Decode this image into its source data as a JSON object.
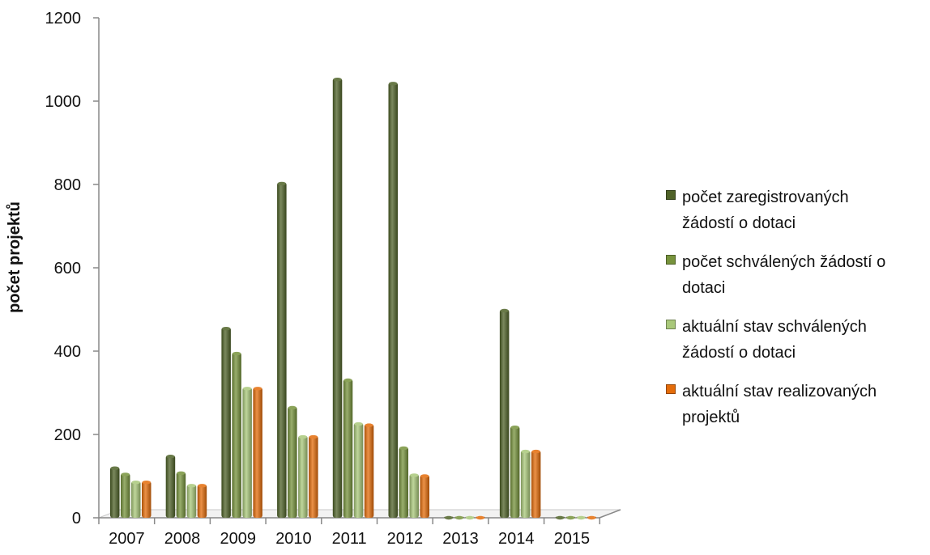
{
  "chart_data": {
    "type": "bar",
    "title": "",
    "xlabel": "",
    "ylabel": "počet projektů",
    "ylim": [
      0,
      1200
    ],
    "yticks": [
      "0",
      "200",
      "400",
      "600",
      "800",
      "1000",
      "1200"
    ],
    "categories": [
      "2007",
      "2008",
      "2009",
      "2010",
      "2011",
      "2012",
      "2013",
      "2014",
      "2015"
    ],
    "series": [
      {
        "name": "počet zaregistrovaných žádostí o dotaci",
        "legend_lines": [
          "počet zaregistrovaných",
          "žádostí o dotaci"
        ],
        "color": "#4f6228",
        "values": [
          122,
          150,
          457,
          805,
          1055,
          1045,
          0,
          500,
          0
        ]
      },
      {
        "name": "počet schválených žádostí o dotaci",
        "legend_lines": [
          "počet schválených žádostí o",
          "dotaci"
        ],
        "color": "#77933c",
        "values": [
          107,
          110,
          397,
          267,
          333,
          170,
          0,
          220,
          0
        ]
      },
      {
        "name": "aktuální stav schválených žádostí o dotaci",
        "legend_lines": [
          "aktuální stav schválených",
          "žádostí o dotaci"
        ],
        "color": "#a9c87a",
        "values": [
          88,
          80,
          313,
          197,
          228,
          105,
          0,
          162,
          0
        ]
      },
      {
        "name": "aktuální stav realizovaných projektů",
        "legend_lines": [
          "aktuální stav realizovaných",
          "projektů"
        ],
        "color": "#e46c0a",
        "values": [
          88,
          80,
          313,
          197,
          225,
          103,
          0,
          162,
          0
        ]
      }
    ],
    "legend_position": "right",
    "grid": false
  }
}
